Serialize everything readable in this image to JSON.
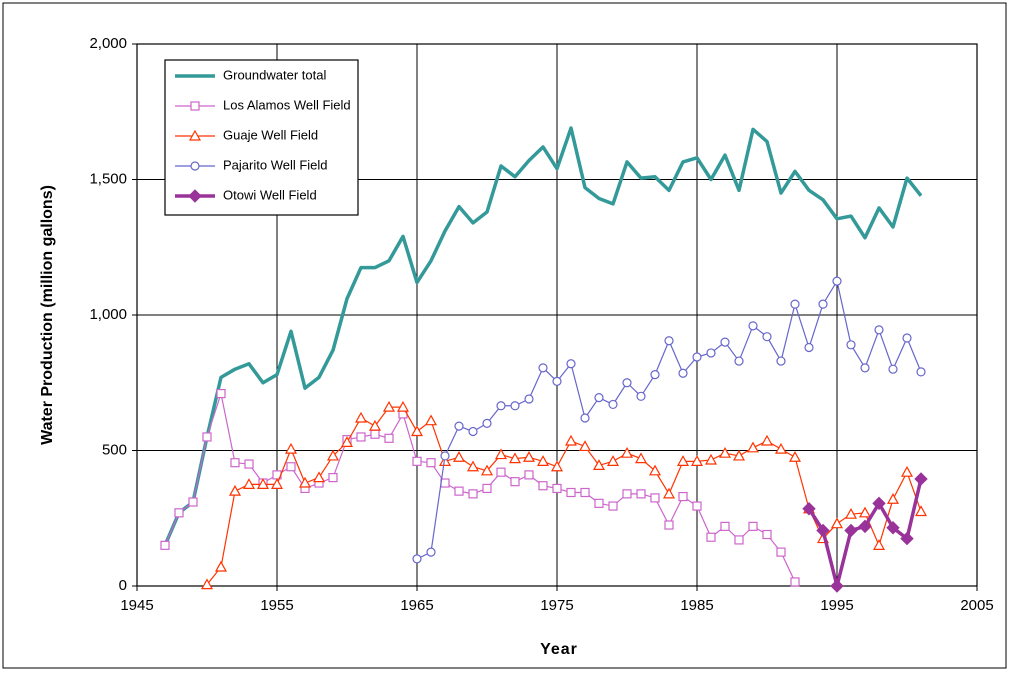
{
  "chart_data": {
    "type": "line",
    "x_label": "Year",
    "y_label": "Water Production (million gallons)",
    "xlim": [
      1945,
      2005
    ],
    "xticks": [
      1945,
      1955,
      1965,
      1975,
      1985,
      1995,
      2005
    ],
    "ylim": [
      0,
      2000
    ],
    "yticks": [
      0,
      500,
      {
        "value": 1000,
        "label": "1,000"
      },
      {
        "value": 1500,
        "label": "1,500"
      },
      {
        "value": 2000,
        "label": "2,000"
      }
    ],
    "grid": true,
    "legend": "upper left",
    "x": [
      1947,
      1948,
      1949,
      1950,
      1951,
      1952,
      1953,
      1954,
      1955,
      1956,
      1957,
      1958,
      1959,
      1960,
      1961,
      1962,
      1963,
      1964,
      1965,
      1966,
      1967,
      1968,
      1969,
      1970,
      1971,
      1972,
      1973,
      1974,
      1975,
      1976,
      1977,
      1978,
      1979,
      1980,
      1981,
      1982,
      1983,
      1984,
      1985,
      1986,
      1987,
      1988,
      1989,
      1990,
      1991,
      1992,
      1993,
      1994,
      1995,
      1996,
      1997,
      1998,
      1999,
      2000,
      2001
    ],
    "series": [
      {
        "name": "Groundwater total",
        "color": "#339999",
        "marker": "none",
        "line_width": 3.5,
        "values": [
          150,
          270,
          310,
          550,
          770,
          800,
          820,
          750,
          780,
          940,
          730,
          770,
          870,
          1060,
          1175,
          1175,
          1200,
          1290,
          1120,
          1200,
          1310,
          1400,
          1340,
          1380,
          1550,
          1510,
          1570,
          1620,
          1540,
          1690,
          1470,
          1430,
          1410,
          1565,
          1505,
          1510,
          1460,
          1565,
          1580,
          1500,
          1590,
          1460,
          1685,
          1640,
          1450,
          1530,
          1460,
          1425,
          1355,
          1365,
          1285,
          1395,
          1325,
          1505,
          1440
        ]
      },
      {
        "name": "Los Alamos Well Field",
        "color": "#CC66CC",
        "marker": "square",
        "line_width": 1.2,
        "values": [
          150,
          270,
          310,
          550,
          710,
          455,
          450,
          380,
          410,
          440,
          360,
          380,
          400,
          540,
          550,
          560,
          545,
          635,
          460,
          455,
          380,
          350,
          340,
          360,
          420,
          385,
          410,
          370,
          360,
          345,
          345,
          305,
          295,
          340,
          340,
          325,
          225,
          330,
          295,
          180,
          220,
          170,
          220,
          190,
          125,
          15,
          null,
          null,
          null,
          null,
          null,
          null,
          null,
          null,
          null
        ]
      },
      {
        "name": "Guaje Well Field",
        "color": "#FF3300",
        "marker": "triangle",
        "line_width": 1.2,
        "values": [
          null,
          null,
          null,
          5,
          70,
          350,
          375,
          375,
          375,
          505,
          380,
          400,
          480,
          530,
          620,
          590,
          660,
          660,
          570,
          610,
          460,
          475,
          440,
          425,
          485,
          470,
          475,
          460,
          440,
          535,
          515,
          445,
          460,
          490,
          470,
          425,
          340,
          460,
          460,
          465,
          490,
          480,
          510,
          535,
          505,
          475,
          285,
          175,
          230,
          265,
          270,
          150,
          320,
          420,
          275
        ]
      },
      {
        "name": "Pajarito Well Field",
        "color": "#6666CC",
        "marker": "circle",
        "line_width": 1.2,
        "values": [
          null,
          null,
          null,
          null,
          null,
          null,
          null,
          null,
          null,
          null,
          null,
          null,
          null,
          null,
          null,
          null,
          null,
          null,
          100,
          125,
          480,
          590,
          570,
          600,
          665,
          665,
          690,
          805,
          755,
          820,
          620,
          695,
          670,
          750,
          700,
          780,
          905,
          785,
          845,
          860,
          900,
          830,
          960,
          920,
          830,
          1040,
          880,
          1040,
          1125,
          890,
          805,
          945,
          800,
          915,
          790
        ]
      },
      {
        "name": "Otowi Well Field",
        "color": "#993399",
        "marker": "diamond",
        "line_width": 3.5,
        "values": [
          null,
          null,
          null,
          null,
          null,
          null,
          null,
          null,
          null,
          null,
          null,
          null,
          null,
          null,
          null,
          null,
          null,
          null,
          null,
          null,
          null,
          null,
          null,
          null,
          null,
          null,
          null,
          null,
          null,
          null,
          null,
          null,
          null,
          null,
          null,
          null,
          null,
          null,
          null,
          null,
          null,
          null,
          null,
          null,
          null,
          null,
          285,
          205,
          0,
          205,
          220,
          305,
          215,
          175,
          395
        ]
      }
    ]
  }
}
